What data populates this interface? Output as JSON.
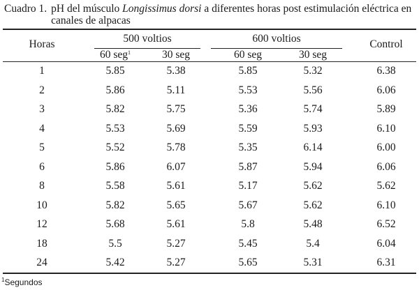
{
  "caption": {
    "label": "Cuadro 1.",
    "text_before": "pH del músculo ",
    "text_italic": "Longissimus dorsi",
    "text_after": " a diferentes horas post estimulación eléctrica en canales de alpacas"
  },
  "header": {
    "horas": "Horas",
    "group_500": "500 voltios",
    "group_600": "600 voltios",
    "control": "Control",
    "sub_60": "60 seg",
    "sub_60_marker": "1",
    "sub_30": "30 seg"
  },
  "rows": [
    {
      "hora": "1",
      "v500_60": "5.85",
      "v500_30": "5.38",
      "v600_60": "5.85",
      "v600_30": "5.32",
      "control": "6.38"
    },
    {
      "hora": "2",
      "v500_60": "5.86",
      "v500_30": "5.11",
      "v600_60": "5.53",
      "v600_30": "5.56",
      "control": "6.06"
    },
    {
      "hora": "3",
      "v500_60": "5.82",
      "v500_30": "5.75",
      "v600_60": "5.36",
      "v600_30": "5.74",
      "control": "5.89"
    },
    {
      "hora": "4",
      "v500_60": "5.53",
      "v500_30": "5.69",
      "v600_60": "5.59",
      "v600_30": "5.93",
      "control": "6.10"
    },
    {
      "hora": "5",
      "v500_60": "5.52",
      "v500_30": "5.78",
      "v600_60": "5.35",
      "v600_30": "6.14",
      "control": "6.00"
    },
    {
      "hora": "6",
      "v500_60": "5.86",
      "v500_30": "6.07",
      "v600_60": "5.87",
      "v600_30": "5.94",
      "control": "6.06"
    },
    {
      "hora": "8",
      "v500_60": "5.58",
      "v500_30": "5.61",
      "v600_60": "5.17",
      "v600_30": "5.62",
      "control": "5.62"
    },
    {
      "hora": "10",
      "v500_60": "5.82",
      "v500_30": "5.65",
      "v600_60": "5.67",
      "v600_30": "5.62",
      "control": "6.10"
    },
    {
      "hora": "12",
      "v500_60": "5.68",
      "v500_30": "5.61",
      "v600_60": "5.8",
      "v600_30": "5.48",
      "control": "6.52"
    },
    {
      "hora": "18",
      "v500_60": "5.5",
      "v500_30": "5.27",
      "v600_60": "5.45",
      "v600_30": "5.4",
      "control": "6.04"
    },
    {
      "hora": "24",
      "v500_60": "5.42",
      "v500_30": "5.27",
      "v600_60": "5.65",
      "v600_30": "5.31",
      "control": "6.31"
    }
  ],
  "footnote": {
    "marker": "1",
    "text": "Segundos"
  }
}
